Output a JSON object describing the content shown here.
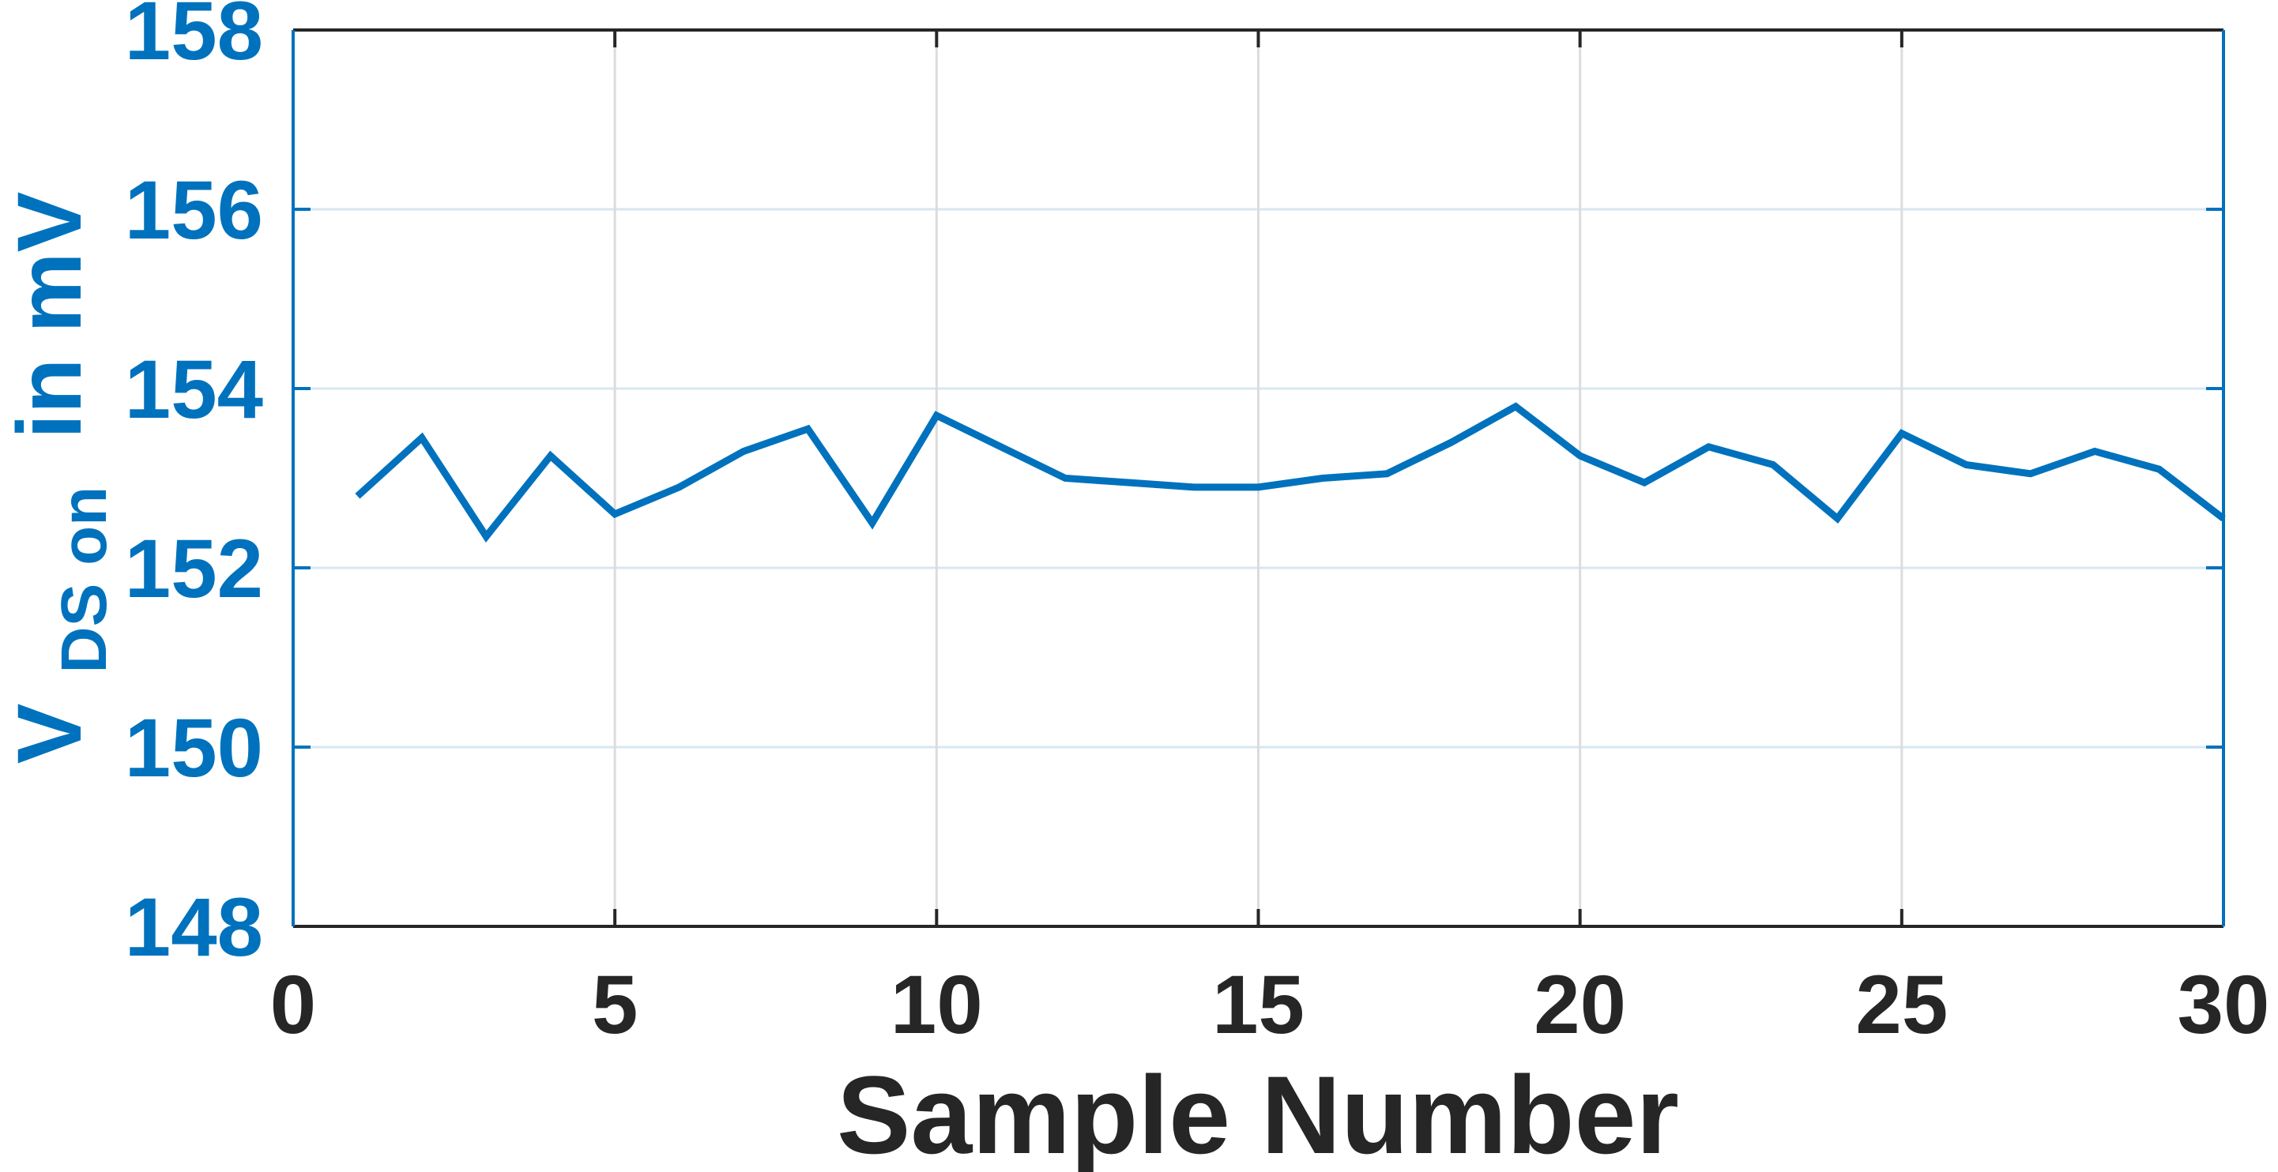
{
  "chart_data": {
    "type": "line",
    "title": "",
    "xlabel": "Sample Number",
    "ylabel": "V_{DS on} in mV",
    "ylabel_parts": {
      "symbol": "V",
      "subscript": "DS on",
      "unit": "in mV"
    },
    "x": [
      1,
      2,
      3,
      4,
      5,
      6,
      7,
      8,
      9,
      10,
      11,
      12,
      13,
      14,
      15,
      16,
      17,
      18,
      19,
      20,
      21,
      22,
      23,
      24,
      25,
      26,
      27,
      28,
      29,
      30
    ],
    "y": [
      152.8,
      153.45,
      152.35,
      153.25,
      152.6,
      152.9,
      153.3,
      153.55,
      152.5,
      153.7,
      153.35,
      153.0,
      152.95,
      152.9,
      152.9,
      153.0,
      153.05,
      153.4,
      153.8,
      153.25,
      152.95,
      153.35,
      153.15,
      152.55,
      153.5,
      153.15,
      153.05,
      153.3,
      153.1,
      152.55
    ],
    "xlim": [
      0,
      30
    ],
    "ylim": [
      148,
      158
    ],
    "xticks": [
      0,
      5,
      10,
      15,
      20,
      25,
      30
    ],
    "yticks": [
      148,
      150,
      152,
      154,
      156,
      158
    ],
    "grid": true,
    "legend": null,
    "colors": {
      "series": "#0072BD",
      "y_axis": "#0072BD",
      "x_axis": "#262626",
      "h_grid": "#d7e7f2",
      "v_grid": "#dcdcdc",
      "background": "#ffffff"
    }
  }
}
